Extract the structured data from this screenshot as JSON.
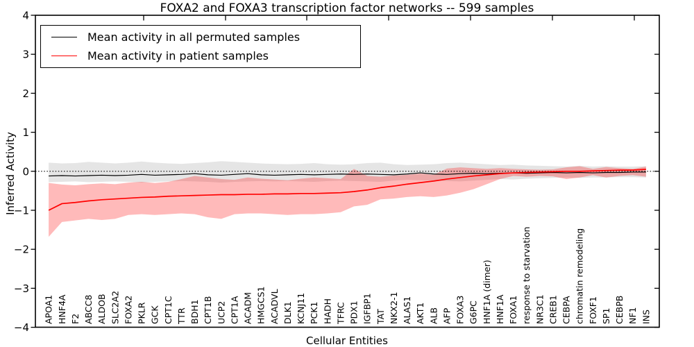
{
  "title": "FOXA2 and FOXA3 transcription factor networks -- 599 samples",
  "legend": {
    "items": [
      {
        "label": "Mean activity in all permuted samples",
        "color": "#000000"
      },
      {
        "label": "Mean activity in patient samples",
        "color": "#ff0000"
      }
    ]
  },
  "chart_data": {
    "type": "line",
    "title": "FOXA2 and FOXA3 transcription factor networks -- 599 samples",
    "xlabel": "Cellular Entities",
    "ylabel": "Inferred Activity",
    "ylim": [
      -4,
      4
    ],
    "yticks": [
      4,
      3,
      2,
      1,
      0,
      -1,
      -2,
      -3,
      -4
    ],
    "grid": false,
    "legend_position": "upper left",
    "zero_line": {
      "style": "dotted",
      "value": 0,
      "color": "#000000"
    },
    "categories": [
      "APOA1",
      "HNF4A",
      "F2",
      "ABCC8",
      "ALDOB",
      "SLC2A2",
      "FOXA2",
      "PKLR",
      "GCK",
      "CPT1C",
      "TTR",
      "BDH1",
      "CPT1B",
      "UCP2",
      "CPT1A",
      "ACADM",
      "HMGCS1",
      "ACADVL",
      "DLK1",
      "KCNJ11",
      "PCK1",
      "HADH",
      "TFRC",
      "PDX1",
      "IGFBP1",
      "TAT",
      "NKX2-1",
      "ALAS1",
      "AKT1",
      "ALB",
      "AFP",
      "FOXA3",
      "G6PC",
      "HNF1A (dimer)",
      "HNF1A",
      "FOXA1",
      "response to starvation",
      "NR3C1",
      "CREB1",
      "CEBPA",
      "chromatin remodeling",
      "FOXF1",
      "SP1",
      "CEBPB",
      "NF1",
      "INS"
    ],
    "series": [
      {
        "name": "Mean activity in all permuted samples",
        "color": "#000000",
        "line_width": 1.2,
        "band_color": "#cfcfcf",
        "band_opacity": 0.55,
        "values": [
          -0.12,
          -0.11,
          -0.12,
          -0.11,
          -0.1,
          -0.11,
          -0.1,
          -0.08,
          -0.1,
          -0.09,
          -0.08,
          -0.06,
          -0.09,
          -0.1,
          -0.08,
          -0.06,
          -0.09,
          -0.1,
          -0.09,
          -0.08,
          -0.09,
          -0.08,
          -0.07,
          -0.08,
          -0.07,
          -0.08,
          -0.09,
          -0.07,
          -0.04,
          -0.07,
          -0.08,
          -0.06,
          -0.05,
          -0.06,
          -0.05,
          -0.04,
          -0.05,
          -0.04,
          -0.03,
          -0.04,
          -0.03,
          -0.04,
          -0.03,
          -0.03,
          -0.02,
          -0.02
        ],
        "band_upper": [
          0.22,
          0.2,
          0.21,
          0.24,
          0.22,
          0.2,
          0.22,
          0.25,
          0.22,
          0.2,
          0.19,
          0.21,
          0.23,
          0.26,
          0.24,
          0.22,
          0.2,
          0.19,
          0.18,
          0.19,
          0.21,
          0.18,
          0.17,
          0.18,
          0.21,
          0.22,
          0.18,
          0.16,
          0.17,
          0.18,
          0.21,
          0.22,
          0.2,
          0.18,
          0.16,
          0.17,
          0.15,
          0.14,
          0.13,
          0.12,
          0.14,
          0.12,
          0.13,
          0.12,
          0.12,
          0.13
        ],
        "band_lower": [
          -0.28,
          -0.27,
          -0.26,
          -0.28,
          -0.27,
          -0.26,
          -0.27,
          -0.29,
          -0.27,
          -0.26,
          -0.25,
          -0.26,
          -0.27,
          -0.29,
          -0.27,
          -0.26,
          -0.25,
          -0.26,
          -0.25,
          -0.26,
          -0.27,
          -0.25,
          -0.24,
          -0.25,
          -0.26,
          -0.27,
          -0.24,
          -0.22,
          -0.23,
          -0.24,
          -0.25,
          -0.26,
          -0.24,
          -0.22,
          -0.2,
          -0.21,
          -0.19,
          -0.18,
          -0.17,
          -0.16,
          -0.17,
          -0.16,
          -0.16,
          -0.15,
          -0.15,
          -0.16
        ]
      },
      {
        "name": "Mean activity in patient samples",
        "color": "#ff0000",
        "line_width": 1.7,
        "band_color": "#ff0000",
        "band_opacity": 0.27,
        "values": [
          -1.0,
          -0.83,
          -0.8,
          -0.76,
          -0.73,
          -0.71,
          -0.69,
          -0.67,
          -0.66,
          -0.64,
          -0.63,
          -0.62,
          -0.61,
          -0.6,
          -0.6,
          -0.59,
          -0.59,
          -0.58,
          -0.58,
          -0.57,
          -0.57,
          -0.56,
          -0.55,
          -0.52,
          -0.48,
          -0.42,
          -0.38,
          -0.33,
          -0.29,
          -0.25,
          -0.2,
          -0.16,
          -0.12,
          -0.09,
          -0.06,
          -0.04,
          -0.03,
          -0.02,
          -0.01,
          0.0,
          0.0,
          0.01,
          0.02,
          0.03,
          0.03,
          0.05
        ],
        "band_upper": [
          -0.3,
          -0.34,
          -0.36,
          -0.33,
          -0.31,
          -0.33,
          -0.29,
          -0.27,
          -0.3,
          -0.27,
          -0.2,
          -0.12,
          -0.16,
          -0.2,
          -0.22,
          -0.16,
          -0.19,
          -0.21,
          -0.23,
          -0.19,
          -0.16,
          -0.18,
          -0.2,
          0.06,
          -0.12,
          -0.14,
          -0.11,
          -0.09,
          -0.06,
          -0.09,
          0.07,
          0.1,
          0.08,
          0.06,
          0.08,
          0.06,
          0.05,
          0.04,
          0.05,
          0.1,
          0.13,
          0.06,
          0.11,
          0.08,
          0.06,
          0.12
        ],
        "band_lower": [
          -1.68,
          -1.3,
          -1.26,
          -1.22,
          -1.25,
          -1.22,
          -1.12,
          -1.1,
          -1.12,
          -1.1,
          -1.08,
          -1.1,
          -1.18,
          -1.22,
          -1.1,
          -1.08,
          -1.08,
          -1.1,
          -1.12,
          -1.1,
          -1.1,
          -1.08,
          -1.05,
          -0.9,
          -0.86,
          -0.72,
          -0.7,
          -0.66,
          -0.64,
          -0.66,
          -0.62,
          -0.55,
          -0.46,
          -0.33,
          -0.2,
          -0.12,
          -0.14,
          -0.12,
          -0.13,
          -0.2,
          -0.16,
          -0.1,
          -0.16,
          -0.12,
          -0.1,
          -0.14
        ]
      }
    ]
  }
}
